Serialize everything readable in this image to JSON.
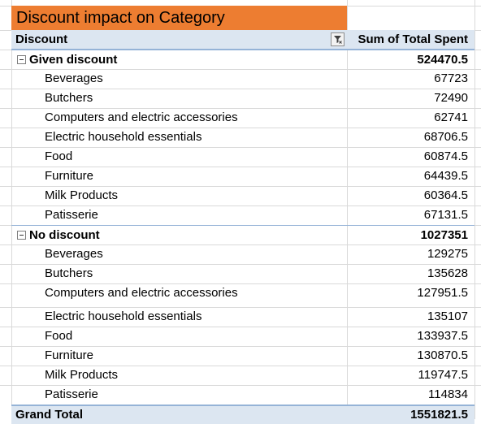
{
  "title": "Discount impact on Category",
  "header": {
    "row_label": "Discount",
    "value_label": "Sum of Total Spent",
    "filter_icon": "filter-dropdown-icon"
  },
  "groups": [
    {
      "label": "Given discount",
      "total": "524470.5",
      "items": [
        {
          "label": "Beverages",
          "value": "67723"
        },
        {
          "label": "Butchers",
          "value": "72490"
        },
        {
          "label": "Computers and electric accessories",
          "value": "62741"
        },
        {
          "label": "Electric household essentials",
          "value": "68706.5"
        },
        {
          "label": "Food",
          "value": "60874.5"
        },
        {
          "label": "Furniture",
          "value": "64439.5"
        },
        {
          "label": "Milk Products",
          "value": "60364.5"
        },
        {
          "label": "Patisserie",
          "value": "67131.5"
        }
      ]
    },
    {
      "label": "No discount",
      "total": "1027351",
      "items": [
        {
          "label": "Beverages",
          "value": "129275"
        },
        {
          "label": "Butchers",
          "value": "135628"
        },
        {
          "label": "Computers and electric accessories",
          "value": "127951.5"
        },
        {
          "label": "Electric household essentials",
          "value": "135107"
        },
        {
          "label": "Food",
          "value": "133937.5"
        },
        {
          "label": "Furniture",
          "value": "130870.5"
        },
        {
          "label": "Milk Products",
          "value": "119747.5"
        },
        {
          "label": "Patisserie",
          "value": "114834"
        }
      ]
    }
  ],
  "grand_total": {
    "label": "Grand Total",
    "value": "1551821.5"
  },
  "colors": {
    "title_fill": "#ed7d31",
    "header_fill": "#dce6f1",
    "border_blue": "#95b3d7"
  }
}
